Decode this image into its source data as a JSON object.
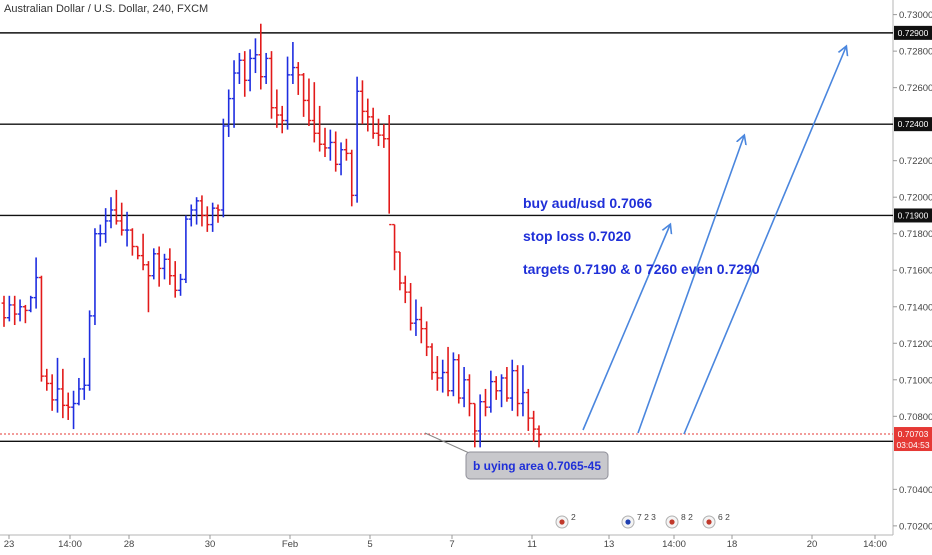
{
  "chart_data": {
    "type": "ohlc",
    "title": "Australian Dollar / U.S. Dollar, 240, FXCM",
    "ylim": [
      0.7015,
      0.7308
    ],
    "y_ticks": [
      "0.73000",
      "0.72800",
      "0.72600",
      "0.72200",
      "0.72000",
      "0.71800",
      "0.71600",
      "0.71400",
      "0.71200",
      "0.71000",
      "0.70800",
      "0.70400",
      "0.70200"
    ],
    "x_ticks": [
      "23",
      "14:00",
      "28",
      "30",
      "Feb",
      "5",
      "7",
      "11",
      "13",
      "14:00",
      "18",
      "20",
      "14:00"
    ],
    "horizontal_lines": [
      {
        "value": 0.729,
        "label": "0.72900",
        "style": "solid"
      },
      {
        "value": 0.724,
        "label": "0.72400",
        "style": "solid"
      },
      {
        "value": 0.719,
        "label": "0.71900",
        "style": "solid"
      },
      {
        "value": 0.70663,
        "label": "0.70663",
        "style": "solid"
      },
      {
        "value": 0.70703,
        "label": "0.70703",
        "style": "dotted",
        "color": "#e53935"
      }
    ],
    "price_tags": {
      "last": "0.70703",
      "countdown": "03:04:53"
    },
    "annotations": [
      "buy aud/usd 0.7066",
      "stop loss 0.7020",
      "targets 0.7190 & 0 7260 even 0.7290"
    ],
    "callout": "b uying area 0.7065-45",
    "event_markers": [
      "2",
      "7 2 3",
      "8 2",
      "6 2"
    ],
    "bars": [
      [
        0.7142,
        0.7146,
        0.7129,
        0.7134
      ],
      [
        0.7134,
        0.7146,
        0.7132,
        0.7141
      ],
      [
        0.7141,
        0.7146,
        0.713,
        0.7136
      ],
      [
        0.7136,
        0.7144,
        0.7132,
        0.714
      ],
      [
        0.714,
        0.7141,
        0.7131,
        0.7138
      ],
      [
        0.7138,
        0.7146,
        0.7137,
        0.7145
      ],
      [
        0.7145,
        0.7167,
        0.7139,
        0.7156
      ],
      [
        0.7156,
        0.7157,
        0.7099,
        0.7102
      ],
      [
        0.7102,
        0.7106,
        0.7094,
        0.7098
      ],
      [
        0.7098,
        0.7103,
        0.7083,
        0.7089
      ],
      [
        0.7089,
        0.7112,
        0.7082,
        0.7095
      ],
      [
        0.7095,
        0.7106,
        0.7079,
        0.7086
      ],
      [
        0.7086,
        0.7093,
        0.7078,
        0.7085
      ],
      [
        0.7085,
        0.7094,
        0.7073,
        0.7087
      ],
      [
        0.7087,
        0.7101,
        0.7086,
        0.7095
      ],
      [
        0.7095,
        0.7112,
        0.7089,
        0.7097
      ],
      [
        0.7097,
        0.7138,
        0.7094,
        0.7135
      ],
      [
        0.7135,
        0.7183,
        0.713,
        0.718
      ],
      [
        0.718,
        0.7185,
        0.7173,
        0.718
      ],
      [
        0.718,
        0.7194,
        0.7175,
        0.7187
      ],
      [
        0.7187,
        0.72,
        0.7183,
        0.7193
      ],
      [
        0.7193,
        0.7204,
        0.7185,
        0.7187
      ],
      [
        0.7187,
        0.7197,
        0.7179,
        0.7182
      ],
      [
        0.7182,
        0.7192,
        0.7173,
        0.7182
      ],
      [
        0.7182,
        0.7183,
        0.7168,
        0.7173
      ],
      [
        0.7173,
        0.7173,
        0.7166,
        0.7168
      ],
      [
        0.7168,
        0.718,
        0.716,
        0.7163
      ],
      [
        0.7163,
        0.7165,
        0.7137,
        0.7157
      ],
      [
        0.7157,
        0.7172,
        0.7155,
        0.7169
      ],
      [
        0.7169,
        0.7173,
        0.7151,
        0.7161
      ],
      [
        0.7161,
        0.7169,
        0.7155,
        0.7166
      ],
      [
        0.7166,
        0.7172,
        0.7152,
        0.7157
      ],
      [
        0.7157,
        0.7165,
        0.7145,
        0.7149
      ],
      [
        0.7149,
        0.7158,
        0.7146,
        0.7155
      ],
      [
        0.7155,
        0.719,
        0.7153,
        0.7188
      ],
      [
        0.7188,
        0.7196,
        0.7184,
        0.7193
      ],
      [
        0.7193,
        0.72,
        0.7185,
        0.7198
      ],
      [
        0.7198,
        0.7201,
        0.7184,
        0.719
      ],
      [
        0.719,
        0.7195,
        0.7181,
        0.7185
      ],
      [
        0.7185,
        0.7197,
        0.7181,
        0.7194
      ],
      [
        0.7194,
        0.7196,
        0.7186,
        0.7193
      ],
      [
        0.7193,
        0.7243,
        0.7189,
        0.7239
      ],
      [
        0.7239,
        0.7259,
        0.7233,
        0.7254
      ],
      [
        0.7254,
        0.7275,
        0.7238,
        0.7268
      ],
      [
        0.7268,
        0.7279,
        0.7262,
        0.7275
      ],
      [
        0.7275,
        0.728,
        0.7255,
        0.7264
      ],
      [
        0.7264,
        0.7281,
        0.7258,
        0.7276
      ],
      [
        0.7276,
        0.7287,
        0.7268,
        0.7278
      ],
      [
        0.7278,
        0.7295,
        0.7259,
        0.7266
      ],
      [
        0.7266,
        0.7279,
        0.7262,
        0.7276
      ],
      [
        0.7276,
        0.728,
        0.7243,
        0.7249
      ],
      [
        0.7249,
        0.7259,
        0.7238,
        0.7245
      ],
      [
        0.7245,
        0.725,
        0.7235,
        0.7242
      ],
      [
        0.7242,
        0.7277,
        0.7237,
        0.7267
      ],
      [
        0.7267,
        0.7285,
        0.7262,
        0.7271
      ],
      [
        0.7271,
        0.7274,
        0.7256,
        0.7267
      ],
      [
        0.7267,
        0.7268,
        0.7244,
        0.7253
      ],
      [
        0.7253,
        0.7265,
        0.7239,
        0.7242
      ],
      [
        0.7242,
        0.7263,
        0.723,
        0.7235
      ],
      [
        0.7235,
        0.725,
        0.7225,
        0.7229
      ],
      [
        0.7229,
        0.7238,
        0.7222,
        0.7227
      ],
      [
        0.7227,
        0.7237,
        0.722,
        0.723
      ],
      [
        0.723,
        0.7236,
        0.7214,
        0.7218
      ],
      [
        0.7218,
        0.723,
        0.7212,
        0.7226
      ],
      [
        0.7226,
        0.7232,
        0.722,
        0.7224
      ],
      [
        0.7224,
        0.7226,
        0.7195,
        0.7201
      ],
      [
        0.7201,
        0.7266,
        0.7197,
        0.7258
      ],
      [
        0.7258,
        0.7264,
        0.724,
        0.7247
      ],
      [
        0.7247,
        0.7254,
        0.7236,
        0.7244
      ],
      [
        0.7244,
        0.7249,
        0.7232,
        0.7235
      ],
      [
        0.7235,
        0.7243,
        0.7228,
        0.7234
      ],
      [
        0.7234,
        0.724,
        0.7227,
        0.7232
      ],
      [
        0.7232,
        0.7245,
        0.7191,
        0.7185
      ],
      [
        0.7185,
        0.7185,
        0.716,
        0.717
      ],
      [
        0.717,
        0.717,
        0.7149,
        0.7153
      ],
      [
        0.7153,
        0.7157,
        0.7142,
        0.7148
      ],
      [
        0.7148,
        0.7153,
        0.7127,
        0.7131
      ],
      [
        0.7131,
        0.7144,
        0.7124,
        0.7133
      ],
      [
        0.7133,
        0.714,
        0.712,
        0.7128
      ],
      [
        0.7128,
        0.7132,
        0.7113,
        0.7118
      ],
      [
        0.7118,
        0.712,
        0.71,
        0.7104
      ],
      [
        0.7104,
        0.7113,
        0.7094,
        0.7101
      ],
      [
        0.7101,
        0.7111,
        0.7093,
        0.7104
      ],
      [
        0.7104,
        0.7118,
        0.7091,
        0.7094
      ],
      [
        0.7094,
        0.7115,
        0.7091,
        0.7111
      ],
      [
        0.7111,
        0.7114,
        0.7087,
        0.709
      ],
      [
        0.709,
        0.7107,
        0.7085,
        0.71
      ],
      [
        0.71,
        0.7103,
        0.708,
        0.7087
      ],
      [
        0.7087,
        0.7087,
        0.7063,
        0.7072
      ],
      [
        0.7072,
        0.7092,
        0.7063,
        0.7088
      ],
      [
        0.7088,
        0.7095,
        0.708,
        0.7085
      ],
      [
        0.7085,
        0.7105,
        0.7082,
        0.7099
      ],
      [
        0.7099,
        0.7102,
        0.7089,
        0.7094
      ],
      [
        0.7094,
        0.7103,
        0.7085,
        0.7101
      ],
      [
        0.7101,
        0.7107,
        0.7088,
        0.709
      ],
      [
        0.709,
        0.7111,
        0.7083,
        0.7105
      ],
      [
        0.7105,
        0.7108,
        0.708,
        0.7087
      ],
      [
        0.7087,
        0.7108,
        0.708,
        0.7093
      ],
      [
        0.7093,
        0.7095,
        0.7072,
        0.7079
      ],
      [
        0.7079,
        0.7083,
        0.7066,
        0.7073
      ],
      [
        0.7073,
        0.7075,
        0.7063,
        0.707
      ]
    ],
    "colors": {
      "up": "#1e2de0",
      "down": "#e21a1a",
      "arrows": "#4a86de",
      "annotation": "#1f2fd8"
    }
  }
}
